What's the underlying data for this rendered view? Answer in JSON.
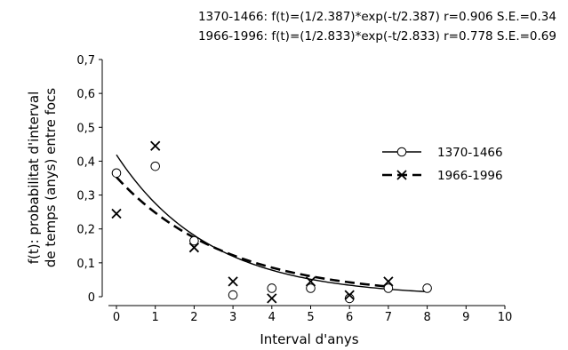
{
  "chart_data": {
    "type": "scatter",
    "title_lines": [
      "1370-1466:  f(t)=(1/2.387)*exp(-t/2.387)  r=0.906  S.E.=0.34",
      "1966-1996:  f(t)=(1/2.833)*exp(-t/2.833)  r=0.778  S.E.=0.69"
    ],
    "xlabel": "Interval d'anys",
    "ylabel_lines": [
      "f(t):  probabilitat d'interval",
      "de temps (anys) entre focs"
    ],
    "xlim": [
      0,
      10
    ],
    "ylim": [
      0,
      0.7
    ],
    "x_ticks": [
      "0",
      "1",
      "2",
      "3",
      "4",
      "5",
      "6",
      "7",
      "8",
      "9",
      "10"
    ],
    "y_ticks": [
      "0",
      "0,1",
      "0,2",
      "0,3",
      "0,4",
      "0,5",
      "0,6",
      "0,7"
    ],
    "legend_position": "right",
    "series": [
      {
        "name": "1370-1466",
        "marker": "circle",
        "line": "solid",
        "fit_tau": 2.387,
        "x": [
          0,
          1,
          2,
          3,
          4,
          5,
          6,
          7,
          8
        ],
        "y": [
          0.365,
          0.385,
          0.165,
          0.005,
          0.025,
          0.025,
          -0.005,
          0.025,
          0.025
        ]
      },
      {
        "name": "1966-1996",
        "marker": "cross",
        "line": "dashed",
        "fit_tau": 2.833,
        "x": [
          0,
          1,
          2,
          3,
          4,
          5,
          6,
          7
        ],
        "y": [
          0.245,
          0.445,
          0.145,
          0.045,
          -0.005,
          0.045,
          0.005,
          0.045
        ]
      }
    ]
  }
}
